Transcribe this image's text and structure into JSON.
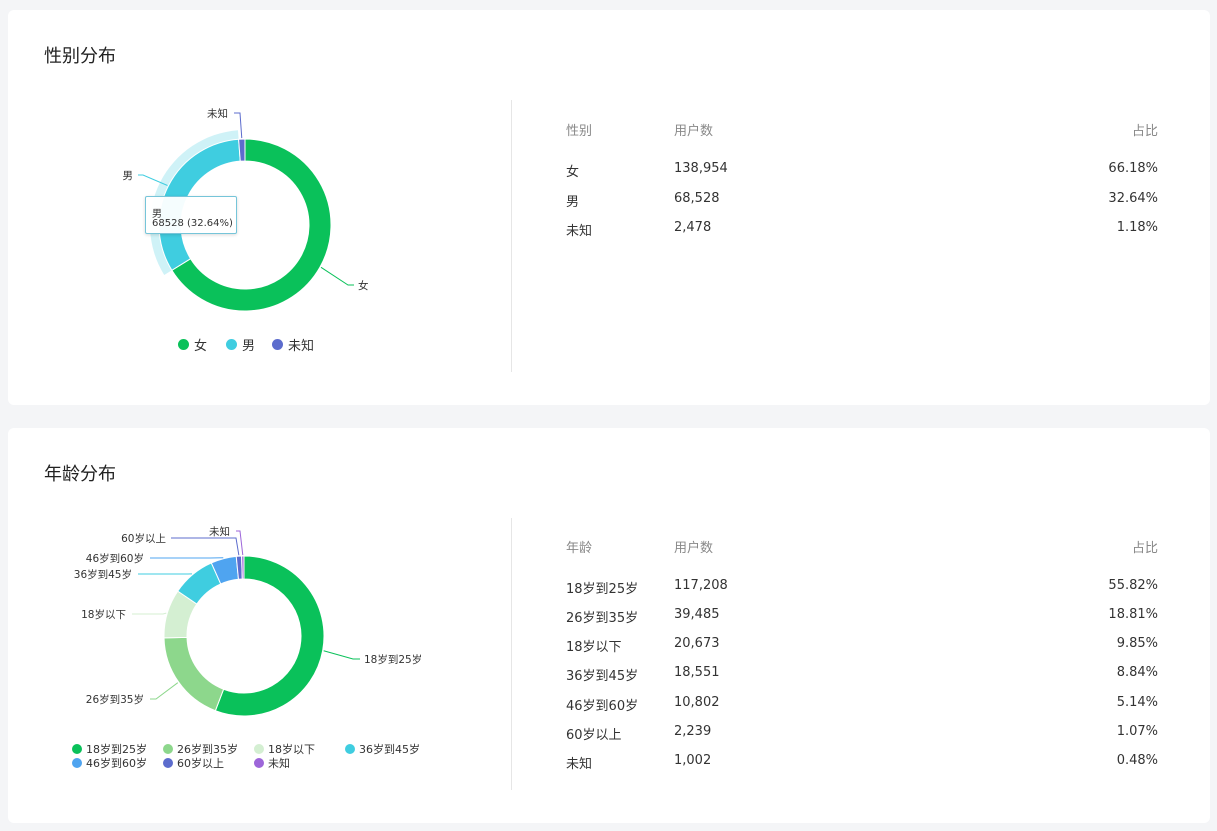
{
  "gender": {
    "title": "性别分布",
    "table": {
      "headers": [
        "性别",
        "用户数",
        "占比"
      ],
      "rows": [
        {
          "label": "女",
          "count": "138,954",
          "pct": "66.18%"
        },
        {
          "label": "男",
          "count": "68,528",
          "pct": "32.64%"
        },
        {
          "label": "未知",
          "count": "2,478",
          "pct": "1.18%"
        }
      ]
    },
    "tooltip": {
      "title": "男",
      "value": "68528 (32.64%)"
    }
  },
  "age": {
    "title": "年龄分布",
    "table": {
      "headers": [
        "年龄",
        "用户数",
        "占比"
      ],
      "rows": [
        {
          "label": "18岁到25岁",
          "count": "117,208",
          "pct": "55.82%"
        },
        {
          "label": "26岁到35岁",
          "count": "39,485",
          "pct": "18.81%"
        },
        {
          "label": "18岁以下",
          "count": "20,673",
          "pct": "9.85%"
        },
        {
          "label": "36岁到45岁",
          "count": "18,551",
          "pct": "8.84%"
        },
        {
          "label": "46岁到60岁",
          "count": "10,802",
          "pct": "5.14%"
        },
        {
          "label": "60岁以上",
          "count": "2,239",
          "pct": "1.07%"
        },
        {
          "label": "未知",
          "count": "1,002",
          "pct": "0.48%"
        }
      ]
    }
  },
  "chart_data": [
    {
      "type": "pie",
      "title": "性别分布",
      "categories": [
        "女",
        "男",
        "未知"
      ],
      "values": [
        138954,
        68528,
        2478
      ],
      "colors": [
        "#0ac15a",
        "#3fcde0",
        "#5c6ccd"
      ],
      "legend": "bottom",
      "highlighted": "男"
    },
    {
      "type": "pie",
      "title": "年龄分布",
      "categories": [
        "18岁到25岁",
        "26岁到35岁",
        "18岁以下",
        "36岁到45岁",
        "46岁到60岁",
        "60岁以上",
        "未知"
      ],
      "values": [
        117208,
        39485,
        20673,
        18551,
        10802,
        2239,
        1002
      ],
      "colors": [
        "#0ac15a",
        "#8dd78c",
        "#d4efd2",
        "#3fcde0",
        "#4fa4f0",
        "#5c6ccd",
        "#9d66d9"
      ],
      "legend": "bottom"
    }
  ]
}
